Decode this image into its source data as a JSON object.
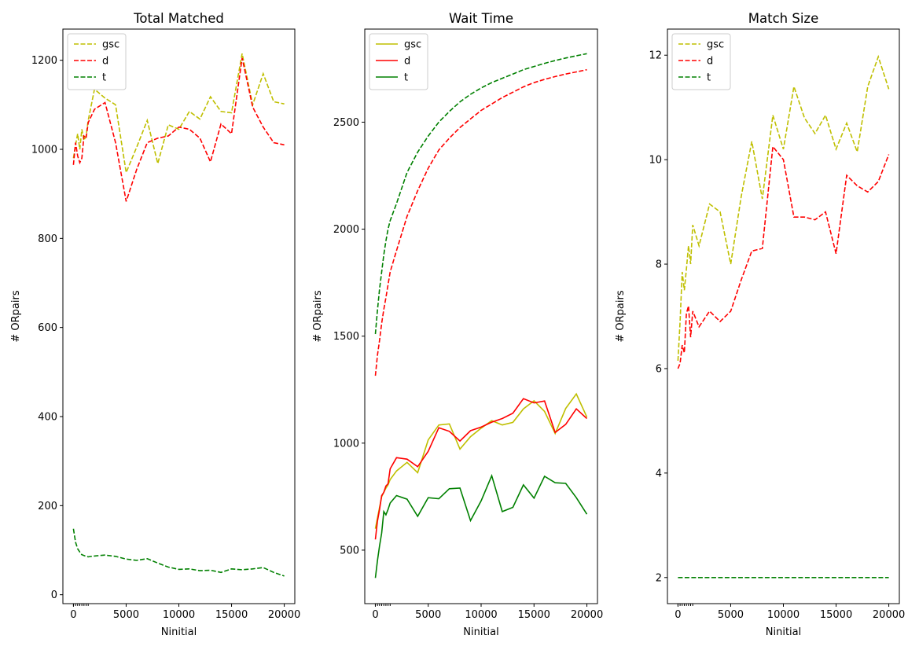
{
  "chart_data": [
    {
      "type": "line",
      "title": "Total Matched",
      "xlabel": "Ninitial",
      "ylabel": "# ORpairs",
      "xlim": [
        -1000,
        21000
      ],
      "ylim": [
        -20,
        1270
      ],
      "xticks": [
        0,
        5000,
        10000,
        15000,
        20000
      ],
      "yticks": [
        0,
        200,
        400,
        600,
        800,
        1000,
        1200
      ],
      "legend": "top-left",
      "series": [
        {
          "name": "gsc",
          "color": "#bfbf00",
          "style": "dashed",
          "x": [
            1,
            200,
            400,
            600,
            800,
            1000,
            1200,
            1400,
            2000,
            3000,
            4000,
            5000,
            6000,
            7000,
            8000,
            9000,
            10000,
            11000,
            12000,
            13000,
            14000,
            15000,
            16000,
            17000,
            18000,
            19000,
            20000
          ],
          "y": [
            980,
            1010,
            1035,
            1000,
            1045,
            1020,
            1030,
            1065,
            1135,
            1115,
            1100,
            948,
            1005,
            1065,
            968,
            1055,
            1045,
            1085,
            1068,
            1118,
            1085,
            1082,
            1215,
            1100,
            1170,
            1107,
            1102
          ]
        },
        {
          "name": "d",
          "color": "#ff0000",
          "style": "dashed",
          "x": [
            1,
            200,
            400,
            600,
            800,
            1000,
            1200,
            1400,
            2000,
            3000,
            4000,
            5000,
            6000,
            7000,
            8000,
            9000,
            10000,
            11000,
            12000,
            13000,
            14000,
            15000,
            16000,
            17000,
            18000,
            19000,
            20000
          ],
          "y": [
            965,
            1015,
            985,
            970,
            980,
            1030,
            1025,
            1060,
            1090,
            1105,
            1015,
            883,
            955,
            1015,
            1025,
            1030,
            1050,
            1045,
            1025,
            972,
            1057,
            1035,
            1205,
            1095,
            1050,
            1015,
            1010
          ]
        },
        {
          "name": "t",
          "color": "#008000",
          "style": "dashed",
          "x": [
            1,
            200,
            400,
            600,
            800,
            1000,
            1200,
            1400,
            2000,
            3000,
            4000,
            5000,
            6000,
            7000,
            8000,
            9000,
            10000,
            11000,
            12000,
            13000,
            14000,
            15000,
            16000,
            17000,
            18000,
            19000,
            20000
          ],
          "y": [
            148,
            118,
            103,
            96,
            90,
            88,
            86,
            85,
            87,
            89,
            86,
            80,
            77,
            81,
            71,
            62,
            57,
            58,
            54,
            55,
            50,
            58,
            56,
            58,
            61,
            50,
            42
          ]
        }
      ]
    },
    {
      "type": "line",
      "title": "Wait Time",
      "xlabel": "Ninitial",
      "ylabel": "# ORpairs",
      "xlim": [
        -1000,
        21000
      ],
      "ylim": [
        250,
        2935
      ],
      "xticks": [
        0,
        5000,
        10000,
        15000,
        20000
      ],
      "yticks": [
        500,
        1000,
        1500,
        2000,
        2500
      ],
      "legend": "top-left",
      "series": [
        {
          "name": "gsc",
          "color": "#bfbf00",
          "style": "solid",
          "x": [
            1,
            200,
            400,
            600,
            800,
            1000,
            1200,
            1400,
            2000,
            3000,
            4000,
            5000,
            6000,
            7000,
            8000,
            9000,
            10000,
            11000,
            12000,
            13000,
            14000,
            15000,
            16000,
            17000,
            18000,
            19000,
            20000
          ],
          "y": [
            600,
            650,
            700,
            750,
            770,
            790,
            805,
            830,
            870,
            910,
            862,
            1015,
            1085,
            1090,
            972,
            1030,
            1070,
            1105,
            1085,
            1097,
            1160,
            1198,
            1148,
            1045,
            1162,
            1230,
            1122
          ]
        },
        {
          "name": "d",
          "color": "#ff0000",
          "style": "solid",
          "x": [
            1,
            200,
            400,
            600,
            800,
            1000,
            1200,
            1400,
            2000,
            3000,
            4000,
            5000,
            6000,
            7000,
            8000,
            9000,
            10000,
            11000,
            12000,
            13000,
            14000,
            15000,
            16000,
            17000,
            18000,
            19000,
            20000
          ],
          "y": [
            550,
            635,
            690,
            755,
            770,
            800,
            810,
            880,
            932,
            925,
            890,
            962,
            1072,
            1055,
            1010,
            1058,
            1075,
            1098,
            1115,
            1140,
            1208,
            1188,
            1197,
            1050,
            1088,
            1160,
            1115
          ]
        },
        {
          "name": "t",
          "color": "#008000",
          "style": "solid",
          "x": [
            1,
            200,
            400,
            600,
            800,
            1000,
            1200,
            1400,
            2000,
            3000,
            4000,
            5000,
            6000,
            7000,
            8000,
            9000,
            10000,
            11000,
            12000,
            13000,
            14000,
            15000,
            16000,
            17000,
            18000,
            19000,
            20000
          ],
          "y": [
            370,
            450,
            520,
            580,
            680,
            665,
            690,
            720,
            755,
            738,
            658,
            745,
            740,
            787,
            790,
            638,
            730,
            848,
            680,
            700,
            805,
            743,
            845,
            815,
            812,
            745,
            668
          ]
        },
        {
          "name": "",
          "color": "#ff0000",
          "style": "dashed",
          "x": [
            1,
            200,
            400,
            600,
            800,
            1000,
            1200,
            1400,
            2000,
            3000,
            4000,
            5000,
            6000,
            7000,
            8000,
            9000,
            10000,
            11000,
            12000,
            13000,
            14000,
            15000,
            16000,
            17000,
            18000,
            19000,
            20000
          ],
          "y": [
            1315,
            1410,
            1480,
            1560,
            1625,
            1680,
            1740,
            1800,
            1900,
            2060,
            2180,
            2285,
            2370,
            2425,
            2475,
            2515,
            2555,
            2585,
            2615,
            2640,
            2665,
            2685,
            2700,
            2713,
            2725,
            2735,
            2745
          ]
        },
        {
          "name": "",
          "color": "#008000",
          "style": "dashed",
          "x": [
            1,
            200,
            400,
            600,
            800,
            1000,
            1200,
            1400,
            2000,
            3000,
            4000,
            5000,
            6000,
            7000,
            8000,
            9000,
            10000,
            11000,
            12000,
            13000,
            14000,
            15000,
            16000,
            17000,
            18000,
            19000,
            20000
          ],
          "y": [
            1510,
            1620,
            1720,
            1800,
            1880,
            1945,
            2000,
            2040,
            2120,
            2265,
            2360,
            2435,
            2500,
            2550,
            2595,
            2630,
            2660,
            2685,
            2705,
            2725,
            2745,
            2760,
            2775,
            2788,
            2800,
            2810,
            2820
          ]
        }
      ]
    },
    {
      "type": "line",
      "title": "Match Size",
      "xlabel": "Ninitial",
      "ylabel": "# ORpairs",
      "xlim": [
        -1000,
        21000
      ],
      "ylim": [
        1.5,
        12.5
      ],
      "xticks": [
        0,
        5000,
        10000,
        15000,
        20000
      ],
      "yticks": [
        2,
        4,
        6,
        8,
        10,
        12
      ],
      "legend": "top-left",
      "series": [
        {
          "name": "gsc",
          "color": "#bfbf00",
          "style": "dashed",
          "x": [
            1,
            200,
            400,
            600,
            800,
            1000,
            1200,
            1400,
            2000,
            3000,
            4000,
            5000,
            6000,
            7000,
            8000,
            9000,
            10000,
            11000,
            12000,
            13000,
            14000,
            15000,
            16000,
            17000,
            18000,
            19000,
            20000
          ],
          "y": [
            6.15,
            6.9,
            7.85,
            7.5,
            7.9,
            8.35,
            8.0,
            8.75,
            8.35,
            9.15,
            9.0,
            8.0,
            9.3,
            10.35,
            9.25,
            10.85,
            10.2,
            11.4,
            10.8,
            10.5,
            10.85,
            10.2,
            10.7,
            10.15,
            11.4,
            11.97,
            11.35
          ]
        },
        {
          "name": "d",
          "color": "#ff0000",
          "style": "dashed",
          "x": [
            1,
            200,
            400,
            600,
            800,
            1000,
            1200,
            1400,
            2000,
            3000,
            4000,
            5000,
            6000,
            7000,
            8000,
            9000,
            10000,
            11000,
            12000,
            13000,
            14000,
            15000,
            16000,
            17000,
            18000,
            19000,
            20000
          ],
          "y": [
            6.0,
            6.1,
            6.45,
            6.3,
            7.05,
            7.2,
            6.6,
            7.1,
            6.8,
            7.1,
            6.9,
            7.1,
            7.7,
            8.25,
            8.3,
            10.25,
            10.0,
            8.9,
            8.9,
            8.85,
            9.0,
            8.2,
            9.7,
            9.5,
            9.38,
            9.58,
            10.1
          ]
        },
        {
          "name": "t",
          "color": "#008000",
          "style": "dashed",
          "x": [
            1,
            200,
            400,
            600,
            800,
            1000,
            1200,
            1400,
            2000,
            3000,
            4000,
            5000,
            6000,
            7000,
            8000,
            9000,
            10000,
            11000,
            12000,
            13000,
            14000,
            15000,
            16000,
            17000,
            18000,
            19000,
            20000
          ],
          "y": [
            2,
            2,
            2,
            2,
            2,
            2,
            2,
            2,
            2,
            2,
            2,
            2,
            2,
            2,
            2,
            2,
            2,
            2,
            2,
            2,
            2,
            2,
            2,
            2,
            2,
            2,
            2
          ]
        }
      ]
    }
  ]
}
